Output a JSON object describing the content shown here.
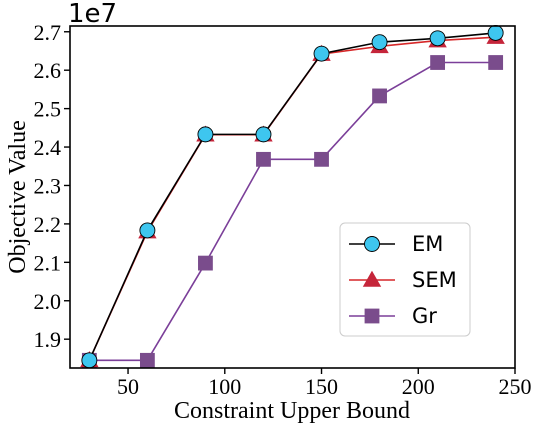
{
  "chart_data": {
    "type": "line",
    "xlabel": "Constraint Upper Bound",
    "ylabel": "Objective Value",
    "y_multiplier_label": "1e7",
    "xlim": [
      20,
      250
    ],
    "ylim": [
      1.825,
      2.715
    ],
    "xticks": [
      50,
      100,
      150,
      200,
      250
    ],
    "yticks": [
      1.9,
      2.0,
      2.1,
      2.2,
      2.3,
      2.4,
      2.5,
      2.6,
      2.7
    ],
    "grid": false,
    "legend_position": "lower-right",
    "x": [
      30,
      60,
      90,
      120,
      150,
      180,
      210,
      240
    ],
    "series": [
      {
        "name": "EM",
        "marker": "circle",
        "line_color": "#000000",
        "marker_color": "#3ec6ef",
        "values": [
          1.845,
          2.183,
          2.433,
          2.433,
          2.643,
          2.673,
          2.683,
          2.697
        ]
      },
      {
        "name": "SEM",
        "marker": "triangle",
        "line_color": "#d62728",
        "marker_color": "#c5253a",
        "values": [
          1.845,
          2.18,
          2.432,
          2.432,
          2.642,
          2.662,
          2.677,
          2.686
        ]
      },
      {
        "name": "Gr",
        "marker": "square",
        "line_color": "#7b3f99",
        "marker_color": "#7a4c8c",
        "values": [
          1.845,
          1.845,
          2.098,
          2.368,
          2.368,
          2.533,
          2.62,
          2.62
        ]
      }
    ]
  }
}
